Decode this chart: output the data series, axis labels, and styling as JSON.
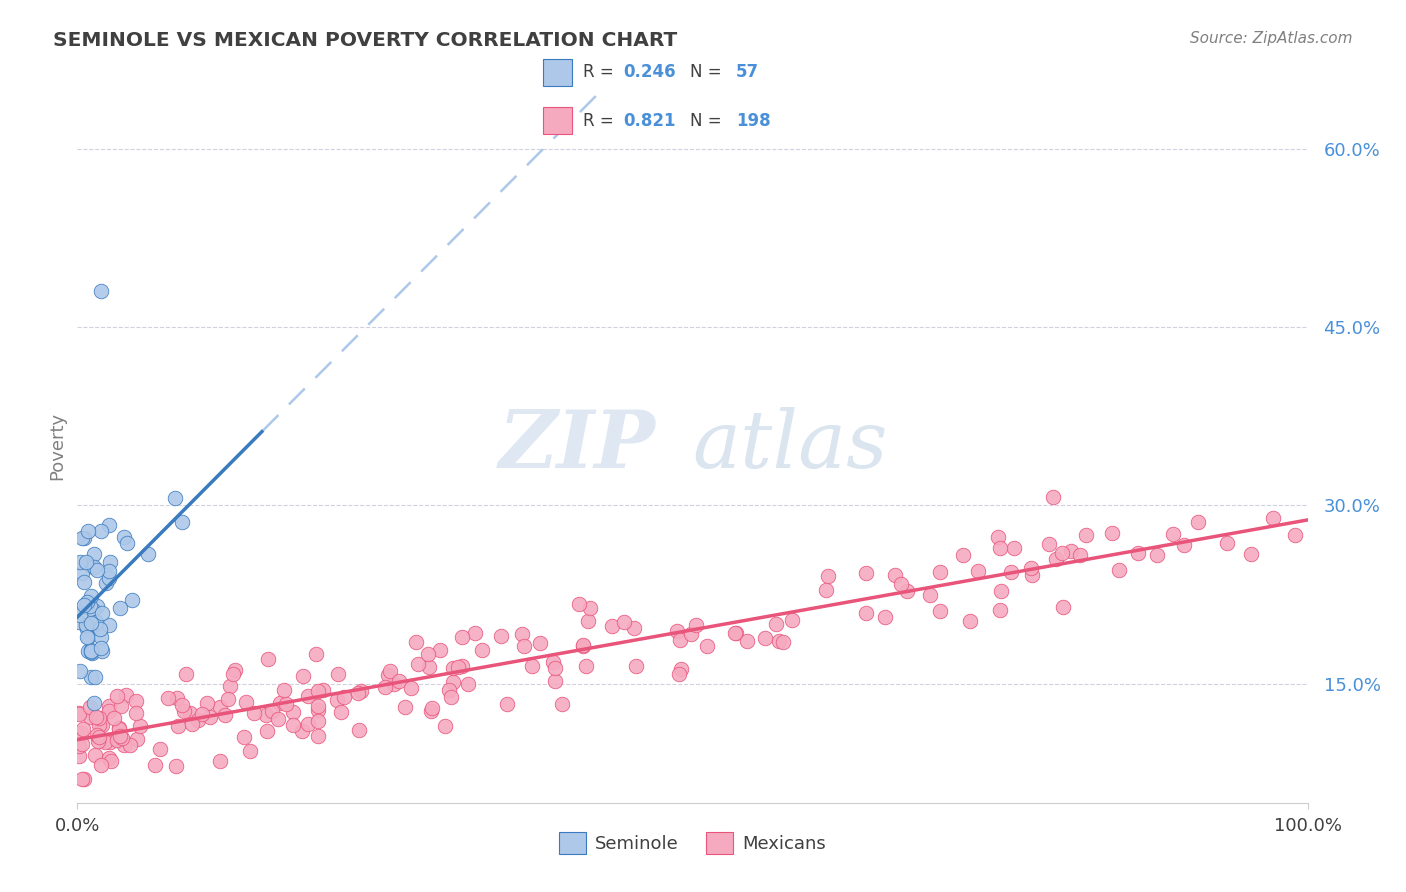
{
  "title": "SEMINOLE VS MEXICAN POVERTY CORRELATION CHART",
  "source": "Source: ZipAtlas.com",
  "ylabel": "Poverty",
  "xlim": [
    0.0,
    1.0
  ],
  "ylim": [
    0.05,
    0.65
  ],
  "yticks": [
    0.15,
    0.3,
    0.45,
    0.6
  ],
  "xticks": [
    0.0,
    1.0
  ],
  "xtick_labels": [
    "0.0%",
    "100.0%"
  ],
  "ytick_labels": [
    "15.0%",
    "30.0%",
    "45.0%",
    "60.0%"
  ],
  "seminole_color": "#adc8e8",
  "mexican_color": "#f5aac0",
  "seminole_line_color": "#3a7bbf",
  "mexican_line_color": "#e8547a",
  "dashed_line_color": "#adc8e8",
  "watermark_zip": "ZIP",
  "watermark_atlas": "atlas",
  "grid_color": "#d0d0e0",
  "title_color": "#404040",
  "source_color": "#808080",
  "ylabel_color": "#808080",
  "tick_color": "#4a90d9",
  "xtick_color": "#404040",
  "legend_text_color": "#404040",
  "legend_num_color": "#4a90d9",
  "legend_r1": "0.246",
  "legend_n1": "57",
  "legend_r2": "0.821",
  "legend_n2": "198"
}
